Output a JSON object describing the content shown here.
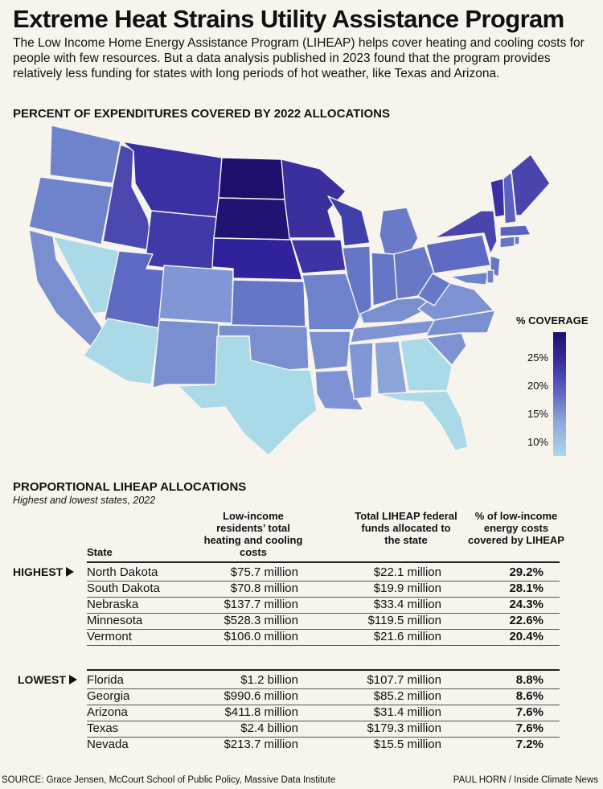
{
  "title": "Extreme Heat Strains Utility Assistance Program",
  "intro": "The Low Income Home Energy Assistance Program (LIHEAP) helps cover heating and cooling costs for people with few resources. But a data analysis published in 2023 found that the program provides relatively less funding for states with long periods of hot weather, like Texas and Arizona.",
  "map": {
    "heading": "PERCENT OF EXPENDITURES COVERED BY 2022 ALLOCATIONS",
    "legend_title": "% COVERAGE",
    "legend_ticks": [
      "25%",
      "20%",
      "15%",
      "10%"
    ],
    "colors": {
      "low": "#aad9e8",
      "mid": "#6e83cb",
      "high": "#1d0f6b"
    }
  },
  "table": {
    "heading": "PROPORTIONAL LIHEAP ALLOCATIONS",
    "subheading": "Highest and lowest states, 2022",
    "columns": {
      "state": "State",
      "cost": "Low-income residents’ total heating and cooling costs",
      "funds": "Total LIHEAP federal funds allocated to the state",
      "pct": "% of low-income energy costs covered by LIHEAP"
    },
    "highest_label": "HIGHEST",
    "lowest_label": "LOWEST",
    "highest": [
      {
        "state": "North Dakota",
        "cost": "$75.7 million",
        "funds": "$22.1 million",
        "pct": "29.2%"
      },
      {
        "state": "South Dakota",
        "cost": "$70.8 million",
        "funds": "$19.9 million",
        "pct": "28.1%"
      },
      {
        "state": "Nebraska",
        "cost": "$137.7 million",
        "funds": "$33.4 million",
        "pct": "24.3%"
      },
      {
        "state": "Minnesota",
        "cost": "$528.3 million",
        "funds": "$119.5 million",
        "pct": "22.6%"
      },
      {
        "state": "Vermont",
        "cost": "$106.0 million",
        "funds": "$21.6 million",
        "pct": "20.4%"
      }
    ],
    "lowest": [
      {
        "state": "Florida",
        "cost": "$1.2 billion",
        "funds": "$107.7 million",
        "pct": "8.8%"
      },
      {
        "state": "Georgia",
        "cost": "$990.6 million",
        "funds": "$85.2 million",
        "pct": "8.6%"
      },
      {
        "state": "Arizona",
        "cost": "$411.8 million",
        "funds": "$31.4 million",
        "pct": "7.6%"
      },
      {
        "state": "Texas",
        "cost": "$2.4 billion",
        "funds": "$179.3 million",
        "pct": "7.6%"
      },
      {
        "state": "Nevada",
        "cost": "$213.7 million",
        "funds": "$15.5 million",
        "pct": "7.2%"
      }
    ]
  },
  "chart_data": {
    "type": "table",
    "title": "PROPORTIONAL LIHEAP ALLOCATIONS",
    "subtitle": "Highest and lowest states, 2022",
    "categories": [
      "North Dakota",
      "South Dakota",
      "Nebraska",
      "Minnesota",
      "Vermont",
      "Florida",
      "Georgia",
      "Arizona",
      "Texas",
      "Nevada"
    ],
    "series": [
      {
        "name": "% of low-income energy costs covered by LIHEAP",
        "values": [
          29.2,
          28.1,
          24.3,
          22.6,
          20.4,
          8.8,
          8.6,
          7.6,
          7.6,
          7.2
        ]
      }
    ]
  },
  "footer": {
    "source": "SOURCE: Grace Jensen, McCourt School of Public Policy, Massive Data Institute",
    "credit": "PAUL HORN / Inside Climate News"
  }
}
